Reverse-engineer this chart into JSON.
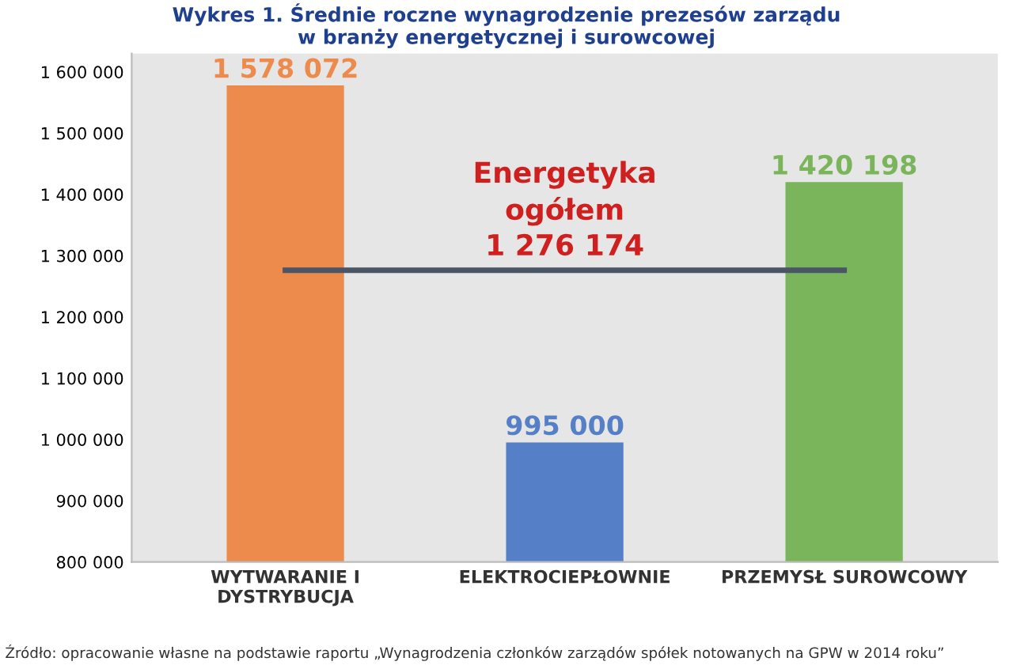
{
  "chart_data": {
    "type": "bar",
    "title": "Wykres 1. Średnie roczne wynagrodzenie prezesów zarządu\nw branży energetycznej i surowcowej",
    "categories": [
      "WYTWARANIE I\nDYSTRYBUCJA",
      "ELEKTROCIEPŁOWNIE",
      "PRZEMYSŁ SUROWCOWY"
    ],
    "values": [
      1578072,
      995000,
      1420198
    ],
    "colors": [
      "#ed8b4c",
      "#5580c8",
      "#7ab55c"
    ],
    "value_labels": [
      "1 578 072",
      "995 000",
      "1 420 198"
    ],
    "ylim": [
      800000,
      1630000
    ],
    "yticks": [
      {
        "value": 800000,
        "label": "800 000"
      },
      {
        "value": 900000,
        "label": "900 000"
      },
      {
        "value": 1000000,
        "label": "1 000 000"
      },
      {
        "value": 1100000,
        "label": "1 100 000"
      },
      {
        "value": 1200000,
        "label": "1 200 000"
      },
      {
        "value": 1300000,
        "label": "1 300 000"
      },
      {
        "value": 1400000,
        "label": "1 400 000"
      },
      {
        "value": 1500000,
        "label": "1 500 000"
      },
      {
        "value": 1600000,
        "label": "1 600 000"
      }
    ],
    "ref_lines": [
      {
        "axis": "y",
        "value": 1276174,
        "label": "Energetyka\nogółem\n1 276 174",
        "color": "#4a5566",
        "line_style": "solid"
      }
    ],
    "grid": false,
    "legend": false,
    "annotations": [
      "Źródło: opracowanie własne na podstawie raportu „Wynagrodzenia członków zarządów spółek notowanych na GPW w 2014 roku”"
    ]
  }
}
